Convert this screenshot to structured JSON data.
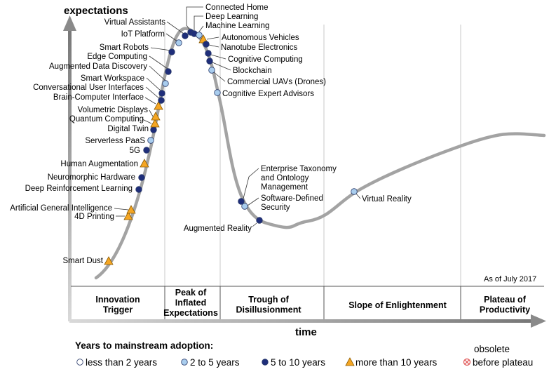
{
  "axis": {
    "y_title": "expectations",
    "x_title": "time"
  },
  "as_of": "As of July 2017",
  "phases": [
    {
      "id": "innovation-trigger",
      "lines": [
        "Innovation",
        "Trigger"
      ]
    },
    {
      "id": "peak",
      "lines": [
        "Peak of",
        "Inflated",
        "Expectations"
      ]
    },
    {
      "id": "trough",
      "lines": [
        "Trough of",
        "Disillusionment"
      ]
    },
    {
      "id": "slope",
      "lines": [
        "Slope of Enlightenment"
      ]
    },
    {
      "id": "plateau",
      "lines": [
        "Plateau of",
        "Productivity"
      ]
    }
  ],
  "legend": {
    "title": "Years to mainstream adoption:",
    "items": [
      {
        "key": "lt2",
        "label": "less than 2 years",
        "marker": "circle",
        "color": "#ffffff"
      },
      {
        "key": "2to5",
        "label": "2 to 5 years",
        "marker": "circle",
        "color": "#a9cdee"
      },
      {
        "key": "5to10",
        "label": "5 to 10 years",
        "marker": "circle",
        "color": "#1f2e7a"
      },
      {
        "key": "gt10",
        "label": "more than 10 years",
        "marker": "triangle",
        "color": "#f5a623"
      }
    ],
    "obsolete": {
      "line1": "obsolete",
      "line2": "before plateau",
      "marker": "circle-x",
      "color": "#e05050"
    }
  },
  "technologies": [
    {
      "name": "Smart Dust",
      "cat": "gt10"
    },
    {
      "name": "4D Printing",
      "cat": "gt10"
    },
    {
      "name": "Artificial General Intelligence",
      "cat": "gt10"
    },
    {
      "name": "Deep Reinforcement Learning",
      "cat": "5to10"
    },
    {
      "name": "Neuromorphic Hardware",
      "cat": "5to10"
    },
    {
      "name": "Human Augmentation",
      "cat": "gt10"
    },
    {
      "name": "5G",
      "cat": "5to10"
    },
    {
      "name": "Serverless PaaS",
      "cat": "2to5"
    },
    {
      "name": "Digital Twin",
      "cat": "5to10"
    },
    {
      "name": "Quantum Computing",
      "cat": "gt10"
    },
    {
      "name": "Volumetric Displays",
      "cat": "gt10"
    },
    {
      "name": "Brain-Computer Interface",
      "cat": "gt10"
    },
    {
      "name": "Conversational User Interfaces",
      "cat": "5to10"
    },
    {
      "name": "Smart Workspace",
      "cat": "5to10"
    },
    {
      "name": "Augmented Data Discovery",
      "cat": "2to5"
    },
    {
      "name": "Edge Computing",
      "cat": "5to10"
    },
    {
      "name": "Smart Robots",
      "cat": "5to10"
    },
    {
      "name": "IoT Platform",
      "cat": "2to5"
    },
    {
      "name": "Virtual Assistants",
      "cat": "5to10"
    },
    {
      "name": "Connected Home",
      "cat": "5to10"
    },
    {
      "name": "Deep Learning",
      "cat": "5to10"
    },
    {
      "name": "Machine Learning",
      "cat": "2to5"
    },
    {
      "name": "Autonomous Vehicles",
      "cat": "gt10"
    },
    {
      "name": "Nanotube Electronics",
      "cat": "5to10"
    },
    {
      "name": "Cognitive Computing",
      "cat": "5to10"
    },
    {
      "name": "Blockchain",
      "cat": "5to10"
    },
    {
      "name": "Commercial UAVs (Drones)",
      "cat": "2to5"
    },
    {
      "name": "Cognitive Expert Advisors",
      "cat": "2to5"
    },
    {
      "name": "Enterprise Taxonomy and Ontology Management",
      "lines": [
        "Enterprise Taxonomy",
        "and Ontology",
        "Management"
      ],
      "cat": "5to10"
    },
    {
      "name": "Software-Defined Security",
      "lines": [
        "Software-Defined",
        "Security"
      ],
      "cat": "2to5"
    },
    {
      "name": "Augmented Reality",
      "cat": "5to10"
    },
    {
      "name": "Virtual Reality",
      "cat": "2to5"
    }
  ]
}
